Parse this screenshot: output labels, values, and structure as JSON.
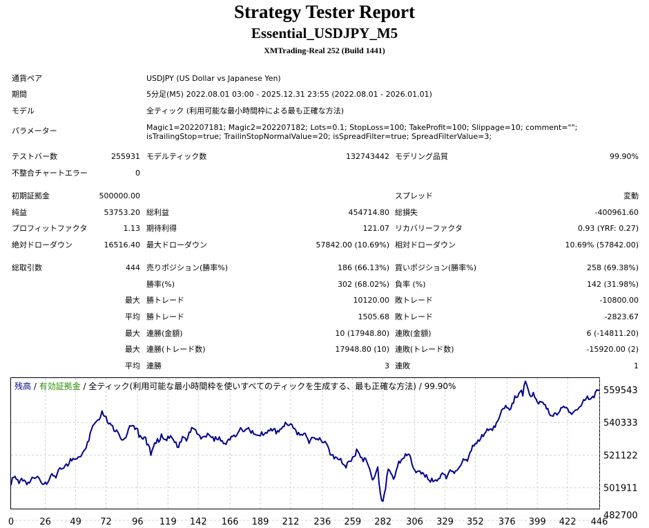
{
  "header": {
    "title": "Strategy Tester Report",
    "subtitle": "Essential_USDJPY_M5",
    "server": "XMTrading-Real 252 (Build 1441)"
  },
  "settings": {
    "pair_label": "通貨ペア",
    "pair_value": "USDJPY (US Dollar vs Japanese Yen)",
    "period_label": "期間",
    "period_value": "5分足(M5) 2022.08.01 03:00 - 2025.12.31 23:55 (2022.08.01 - 2026.01.01)",
    "model_label": "モデル",
    "model_value": "全ティック (利用可能な最小時間枠による最も正確な方法)",
    "params_label": "パラメーター",
    "params_value": "Magic1=202207181; Magic2=202207182; Lots=0.1; StopLoss=100; TakeProfit=100; Slippage=10; comment=\"\"; isTrailingStop=true; TrailinStopNormalValue=20; isSpreadFilter=true; SpreadFilterValue=3;"
  },
  "stats": {
    "bars_label": "テストバー数",
    "bars_value": "255931",
    "ticks_label": "モデルティック数",
    "ticks_value": "132743442",
    "quality_label": "モデリング品質",
    "quality_value": "99.90%",
    "mismatch_label": "不整合チャートエラー",
    "mismatch_value": "0",
    "deposit_label": "初期証拠金",
    "deposit_value": "500000.00",
    "spread_label": "スプレッド",
    "spread_value": "変動",
    "net_label": "純益",
    "net_value": "53753.20",
    "gross_profit_label": "総利益",
    "gross_profit_value": "454714.80",
    "gross_loss_label": "総損失",
    "gross_loss_value": "-400961.60",
    "pf_label": "プロフィットファクタ",
    "pf_value": "1.13",
    "expected_label": "期待利得",
    "expected_value": "121.07",
    "recovery_label": "リカバリーファクタ",
    "recovery_value": "0.93 (YRF: 0.27)",
    "abs_dd_label": "絶対ドローダウン",
    "abs_dd_value": "16516.40",
    "max_dd_label": "最大ドローダウン",
    "max_dd_value": "57842.00 (10.69%)",
    "rel_dd_label": "相対ドローダウン",
    "rel_dd_value": "10.69% (57842.00)"
  },
  "trades": {
    "total_label": "総取引数",
    "total_value": "444",
    "short_label": "売りポジション(勝率%)",
    "short_value": "186 (66.13%)",
    "long_label": "買いポジション(勝率%)",
    "long_value": "258 (69.38%)",
    "win_rate_label": "勝率(%)",
    "win_rate_value": "302 (68.02%)",
    "loss_rate_label": "負率 (%)",
    "loss_rate_value": "142 (31.98%)",
    "max_prefix": "最大",
    "avg_prefix": "平均",
    "largest_win_label": "勝トレード",
    "largest_win_value": "10120.00",
    "largest_loss_label": "敗トレード",
    "largest_loss_value": "-10800.00",
    "avg_win_label": "勝トレード",
    "avg_win_value": "1505.68",
    "avg_loss_label": "敗トレード",
    "avg_loss_value": "-2823.67",
    "max_consec_wins_label": "連勝(金額)",
    "max_consec_wins_value": "10 (17948.80)",
    "max_consec_losses_label": "連敗(金額)",
    "max_consec_losses_value": "6 (-14811.20)",
    "max_consec_profit_label": "連勝(トレード数)",
    "max_consec_profit_value": "17948.80 (10)",
    "max_consec_loss_label": "連敗(トレード数)",
    "max_consec_loss_value": "-15920.00 (2)",
    "avg_consec_wins_label": "連勝",
    "avg_consec_wins_value": "3",
    "avg_consec_losses_label": "連敗",
    "avg_consec_losses_value": "1"
  },
  "chart_data": {
    "type": "line",
    "legend": {
      "balance": "残高",
      "sep1": " / ",
      "equity": "有効証拠金",
      "sep2": " / ",
      "model": "全ティック(利用可能な最小時間枠を使いすべてのティックを生成する、最も正確な方法)",
      "sep3": " / ",
      "quality": "99.90%"
    },
    "x_ticks": [
      "0",
      "26",
      "49",
      "72",
      "96",
      "119",
      "142",
      "166",
      "189",
      "212",
      "236",
      "259",
      "282",
      "306",
      "329",
      "352",
      "376",
      "399",
      "422",
      "446"
    ],
    "y_ticks": [
      "559543",
      "540333",
      "521122",
      "501911",
      "482700"
    ],
    "ylim": [
      482700,
      559543
    ],
    "xlim": [
      0,
      446
    ],
    "colors": {
      "balance": "#00008b",
      "equity": "#2e8b00",
      "grid": "#cfcfcf"
    },
    "series": [
      {
        "name": "残高",
        "x": [
          0,
          2,
          4,
          6,
          8,
          10,
          14,
          18,
          22,
          26,
          30,
          34,
          38,
          42,
          46,
          50,
          54,
          58,
          62,
          66,
          69,
          72,
          75,
          78,
          82,
          86,
          90,
          94,
          98,
          102,
          106,
          110,
          114,
          118,
          122,
          126,
          130,
          134,
          138,
          142,
          146,
          150,
          154,
          158,
          162,
          166,
          170,
          174,
          178,
          182,
          186,
          190,
          194,
          198,
          202,
          206,
          210,
          214,
          218,
          222,
          226,
          230,
          234,
          238,
          242,
          246,
          250,
          254,
          258,
          262,
          266,
          270,
          274,
          278,
          280,
          282,
          284,
          286,
          290,
          294,
          298,
          302,
          304,
          306,
          310,
          314,
          318,
          322,
          326,
          330,
          334,
          338,
          342,
          346,
          350,
          354,
          358,
          362,
          366,
          370,
          374,
          378,
          382,
          386,
          388,
          390,
          393,
          396,
          400,
          404,
          408,
          412,
          416,
          420,
          424,
          428,
          432,
          436,
          440,
          444,
          446
        ],
        "y": [
          496500,
          501000,
          500000,
          497500,
          500500,
          499500,
          497800,
          500500,
          499500,
          498300,
          502000,
          500800,
          506000,
          509000,
          510800,
          512000,
          515200,
          522000,
          531500,
          535000,
          540200,
          537000,
          533000,
          528500,
          526200,
          524000,
          531500,
          529300,
          525700,
          524700,
          514100,
          521100,
          526600,
          522700,
          524400,
          518900,
          525100,
          524500,
          530000,
          526300,
          525100,
          526300,
          522400,
          524900,
          521100,
          523100,
          525000,
          530300,
          529400,
          527100,
          526000,
          527900,
          527100,
          528400,
          528600,
          531000,
          531700,
          530000,
          527500,
          526900,
          521100,
          524400,
          524400,
          522300,
          514300,
          513100,
          512200,
          506700,
          510700,
          517700,
          512800,
          509700,
          499600,
          507200,
          491700,
          487100,
          494500,
          505900,
          500000,
          510600,
          512500,
          514600,
          508900,
          505500,
          504800,
          501300,
          498300,
          499600,
          502700,
          500300,
          504700,
          505100,
          510000,
          510600,
          520000,
          523100,
          525100,
          528700,
          531300,
          535900,
          541600,
          540700,
          549000,
          551500,
          549000,
          557700,
          550000,
          551000,
          544300,
          544000,
          538600,
          538900,
          539900,
          542100,
          539300,
          540700,
          542900,
          547400,
          547700,
          552600,
          552200
        ]
      }
    ]
  }
}
